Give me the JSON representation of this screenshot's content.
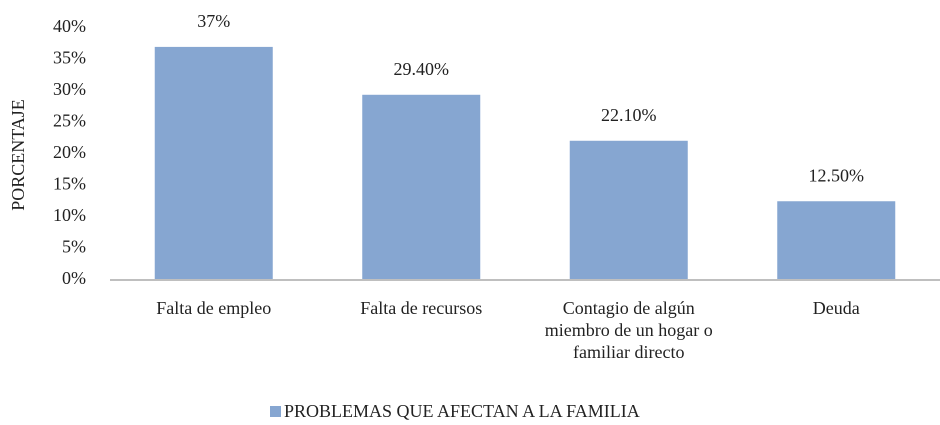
{
  "chart_data": {
    "type": "bar",
    "y_label": "PORCENTAJE",
    "categories": [
      "Falta de empleo",
      "Falta de recursos",
      "Contagio de algún miembro de un hogar o familiar directo",
      "Deuda"
    ],
    "series": [
      {
        "name": "PROBLEMAS QUE AFECTAN A LA FAMILIA",
        "color": "#86a6d1",
        "values": [
          37,
          29.4,
          22.1,
          12.5
        ],
        "value_labels": [
          "37%",
          "29.40%",
          "22.10%",
          "12.50%"
        ]
      }
    ],
    "ylim": [
      0,
      40
    ],
    "yticks": [
      {
        "value": 0,
        "label": "0%"
      },
      {
        "value": 5,
        "label": "5%"
      },
      {
        "value": 10,
        "label": "10%"
      },
      {
        "value": 15,
        "label": "15%"
      },
      {
        "value": 20,
        "label": "20%"
      },
      {
        "value": 25,
        "label": "25%"
      },
      {
        "value": 30,
        "label": "30%"
      },
      {
        "value": 35,
        "label": "35%"
      },
      {
        "value": 40,
        "label": "40%"
      }
    ],
    "grid": false,
    "legend": "bottom"
  }
}
